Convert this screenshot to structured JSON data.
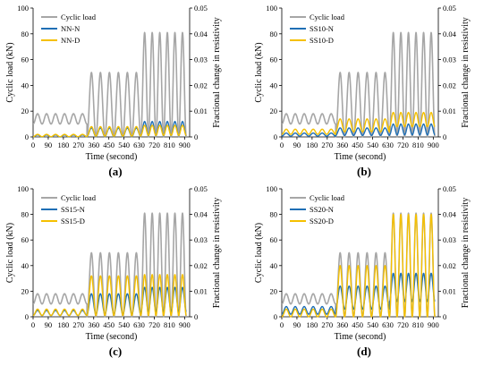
{
  "colors": {
    "cyclic": "#a6a6a6",
    "n": "#1f6fb5",
    "d": "#f5c000"
  },
  "chart_data": [
    {
      "type": "line",
      "caption": "(a)",
      "xlabel": "Time (second)",
      "ylabel": "Cyclic load (kN)",
      "y2label": "Fractional  change  in resistivity",
      "xlim": [
        0,
        930
      ],
      "xticks": [
        0,
        90,
        180,
        270,
        360,
        450,
        540,
        630,
        720,
        810,
        900
      ],
      "xticklabels": [
        "0",
        "90",
        "180",
        "270",
        "360",
        "450",
        "540",
        "630",
        "720",
        "810",
        "900"
      ],
      "ylim": [
        0,
        100
      ],
      "yticks": [
        0,
        20,
        40,
        60,
        80,
        100
      ],
      "yticklabels": [
        "0",
        "20",
        "40",
        "60",
        "80",
        "100"
      ],
      "y2lim": [
        0,
        0.05
      ],
      "y2ticks": [
        0,
        0.01,
        0.02,
        0.03,
        0.04,
        0.05
      ],
      "y2ticklabels": [
        "0",
        "0.01",
        "0.02",
        "0.03",
        "0.04",
        "0.05"
      ],
      "legend": {
        "position": "top-left",
        "entries": [
          "Cyclic load",
          "NN-N",
          "NN-D"
        ]
      },
      "series": [
        {
          "name": "Cyclic load",
          "axis": "left",
          "segments": [
            {
              "t_start": 0,
              "t_end": 320,
              "min": 10,
              "max": 18,
              "cycles": 6
            },
            {
              "t_start": 320,
              "t_end": 640,
              "min": 0,
              "max": 50,
              "cycles": 6
            },
            {
              "t_start": 640,
              "t_end": 910,
              "min": 0,
              "max": 81,
              "cycles": 6
            }
          ]
        },
        {
          "name": "NN-N",
          "axis": "right",
          "segments": [
            {
              "t_start": 0,
              "t_end": 320,
              "min": 0.0,
              "max": 0.0008,
              "cycles": 6
            },
            {
              "t_start": 320,
              "t_end": 640,
              "min": 0.0002,
              "max": 0.0035,
              "cycles": 6
            },
            {
              "t_start": 640,
              "t_end": 910,
              "min": 0.0005,
              "max": 0.006,
              "cycles": 6
            }
          ]
        },
        {
          "name": "NN-D",
          "axis": "right",
          "segments": [
            {
              "t_start": 0,
              "t_end": 320,
              "min": 0.0001,
              "max": 0.001,
              "cycles": 6
            },
            {
              "t_start": 320,
              "t_end": 640,
              "min": 0.0003,
              "max": 0.004,
              "cycles": 6
            },
            {
              "t_start": 640,
              "t_end": 910,
              "min": 0.0006,
              "max": 0.0045,
              "cycles": 6
            }
          ]
        }
      ]
    },
    {
      "type": "line",
      "caption": "(b)",
      "xlabel": "Time (second)",
      "ylabel": "Cyclic load (kN)",
      "y2label": "Fractional  change  in resistivity",
      "xlim": [
        0,
        930
      ],
      "xticks": [
        0,
        90,
        180,
        270,
        360,
        450,
        540,
        630,
        720,
        810,
        900
      ],
      "xticklabels": [
        "0",
        "90",
        "180",
        "270",
        "360",
        "450",
        "540",
        "630",
        "720",
        "810",
        "900"
      ],
      "ylim": [
        0,
        100
      ],
      "yticks": [
        0,
        20,
        40,
        60,
        80,
        100
      ],
      "yticklabels": [
        "0",
        "20",
        "40",
        "60",
        "80",
        "100"
      ],
      "y2lim": [
        0,
        0.05
      ],
      "y2ticks": [
        0,
        0.01,
        0.02,
        0.03,
        0.04,
        0.05
      ],
      "y2ticklabels": [
        "0",
        "0.01",
        "0.02",
        "0.03",
        "0.04",
        "0.05"
      ],
      "legend": {
        "position": "top-left",
        "entries": [
          "Cyclic load",
          "SS10-N",
          "SS10-D"
        ]
      },
      "series": [
        {
          "name": "Cyclic load",
          "axis": "left",
          "segments": [
            {
              "t_start": 0,
              "t_end": 320,
              "min": 10,
              "max": 18,
              "cycles": 6
            },
            {
              "t_start": 320,
              "t_end": 640,
              "min": 0,
              "max": 50,
              "cycles": 6
            },
            {
              "t_start": 640,
              "t_end": 910,
              "min": 0,
              "max": 81,
              "cycles": 6
            }
          ]
        },
        {
          "name": "SS10-N",
          "axis": "right",
          "segments": [
            {
              "t_start": 0,
              "t_end": 320,
              "min": 0.0003,
              "max": 0.0015,
              "cycles": 6
            },
            {
              "t_start": 320,
              "t_end": 640,
              "min": 0.0006,
              "max": 0.0035,
              "cycles": 6
            },
            {
              "t_start": 640,
              "t_end": 910,
              "min": 0.0008,
              "max": 0.005,
              "cycles": 6
            }
          ]
        },
        {
          "name": "SS10-D",
          "axis": "right",
          "segments": [
            {
              "t_start": 0,
              "t_end": 320,
              "min": 0.001,
              "max": 0.003,
              "cycles": 6
            },
            {
              "t_start": 320,
              "t_end": 640,
              "min": 0.002,
              "max": 0.007,
              "cycles": 6
            },
            {
              "t_start": 640,
              "t_end": 910,
              "min": 0.004,
              "max": 0.0095,
              "cycles": 6
            }
          ]
        }
      ]
    },
    {
      "type": "line",
      "caption": "(c)",
      "xlabel": "Time (second)",
      "ylabel": "Cyclic load (kN)",
      "y2label": "Fractional  change  in resistivity",
      "xlim": [
        0,
        930
      ],
      "xticks": [
        0,
        90,
        180,
        270,
        360,
        450,
        540,
        630,
        720,
        810,
        900
      ],
      "xticklabels": [
        "0",
        "90",
        "180",
        "270",
        "360",
        "450",
        "540",
        "630",
        "720",
        "810",
        "900"
      ],
      "ylim": [
        0,
        100
      ],
      "yticks": [
        0,
        20,
        40,
        60,
        80,
        100
      ],
      "yticklabels": [
        "0",
        "20",
        "40",
        "60",
        "80",
        "100"
      ],
      "y2lim": [
        0,
        0.05
      ],
      "y2ticks": [
        0,
        0.01,
        0.02,
        0.03,
        0.04,
        0.05
      ],
      "y2ticklabels": [
        "0",
        "0.01",
        "0.02",
        "0.03",
        "0.04",
        "0.05"
      ],
      "legend": {
        "position": "top-left",
        "entries": [
          "Cyclic load",
          "SS15-N",
          "SS15-D"
        ]
      },
      "series": [
        {
          "name": "Cyclic load",
          "axis": "left",
          "segments": [
            {
              "t_start": 0,
              "t_end": 320,
              "min": 10,
              "max": 18,
              "cycles": 6
            },
            {
              "t_start": 320,
              "t_end": 640,
              "min": 0,
              "max": 50,
              "cycles": 6
            },
            {
              "t_start": 640,
              "t_end": 910,
              "min": 0,
              "max": 81,
              "cycles": 6
            }
          ]
        },
        {
          "name": "SS15-N",
          "axis": "right",
          "segments": [
            {
              "t_start": 0,
              "t_end": 320,
              "min": 0.0005,
              "max": 0.0025,
              "cycles": 6
            },
            {
              "t_start": 320,
              "t_end": 640,
              "min": 0.001,
              "max": 0.009,
              "cycles": 6
            },
            {
              "t_start": 640,
              "t_end": 910,
              "min": 0.002,
              "max": 0.0115,
              "cycles": 6
            }
          ]
        },
        {
          "name": "SS15-D",
          "axis": "right",
          "segments": [
            {
              "t_start": 0,
              "t_end": 320,
              "min": 0.0005,
              "max": 0.003,
              "cycles": 6
            },
            {
              "t_start": 320,
              "t_end": 640,
              "min": 0.0005,
              "max": 0.016,
              "cycles": 6
            },
            {
              "t_start": 640,
              "t_end": 910,
              "min": 0.0005,
              "max": 0.0165,
              "cycles": 6
            }
          ]
        }
      ]
    },
    {
      "type": "line",
      "caption": "(d)",
      "xlabel": "Time (second)",
      "ylabel": "Cyclic load (kN)",
      "y2label": "Fractional  change  in resistivity",
      "xlim": [
        0,
        930
      ],
      "xticks": [
        0,
        90,
        180,
        270,
        360,
        450,
        540,
        630,
        720,
        810,
        900
      ],
      "xticklabels": [
        "0",
        "90",
        "180",
        "270",
        "360",
        "450",
        "540",
        "630",
        "720",
        "810",
        "900"
      ],
      "ylim": [
        0,
        100
      ],
      "yticks": [
        0,
        20,
        40,
        60,
        80,
        100
      ],
      "yticklabels": [
        "0",
        "20",
        "40",
        "60",
        "80",
        "100"
      ],
      "y2lim": [
        0,
        0.05
      ],
      "y2ticks": [
        0,
        0.01,
        0.02,
        0.03,
        0.04,
        0.05
      ],
      "y2ticklabels": [
        "0",
        "0.01",
        "0.02",
        "0.03",
        "0.04",
        "0.05"
      ],
      "legend": {
        "position": "top-left",
        "entries": [
          "Cyclic load",
          "SS20-N",
          "SS20-D"
        ]
      },
      "series": [
        {
          "name": "Cyclic load",
          "axis": "left",
          "segments": [
            {
              "t_start": 0,
              "t_end": 320,
              "min": 10,
              "max": 18,
              "cycles": 6
            },
            {
              "t_start": 320,
              "t_end": 640,
              "min": 0,
              "max": 50,
              "cycles": 6
            },
            {
              "t_start": 640,
              "t_end": 910,
              "min": 0,
              "max": 81,
              "cycles": 6
            }
          ]
        },
        {
          "name": "SS20-N",
          "axis": "right",
          "segments": [
            {
              "t_start": 0,
              "t_end": 320,
              "min": 0.001,
              "max": 0.004,
              "cycles": 6
            },
            {
              "t_start": 320,
              "t_end": 640,
              "min": 0.003,
              "max": 0.012,
              "cycles": 6
            },
            {
              "t_start": 640,
              "t_end": 910,
              "min": 0.006,
              "max": 0.017,
              "cycles": 6
            }
          ]
        },
        {
          "name": "SS20-D",
          "axis": "right",
          "segments": [
            {
              "t_start": 0,
              "t_end": 320,
              "min": 0.0,
              "max": 0.003,
              "cycles": 6
            },
            {
              "t_start": 320,
              "t_end": 640,
              "min": 0.0,
              "max": 0.02,
              "cycles": 6
            },
            {
              "t_start": 640,
              "t_end": 910,
              "min": 0.0,
              "max": 0.04,
              "cycles": 6
            }
          ]
        }
      ]
    }
  ]
}
